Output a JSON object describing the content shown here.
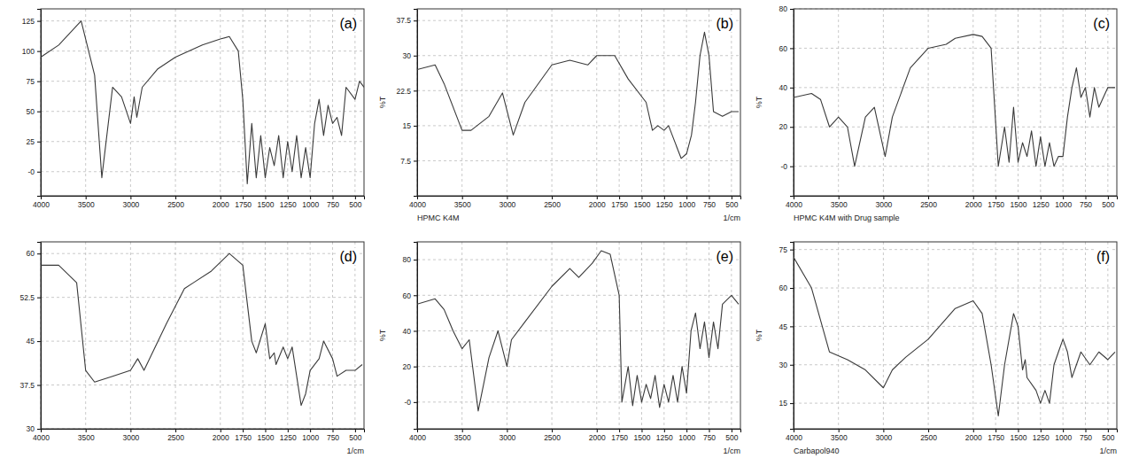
{
  "chart_data": [
    {
      "type": "line",
      "title": "(a)",
      "color": "#3a3a3a",
      "grid": true,
      "xlim": [
        4000,
        400
      ],
      "xticks": [
        4000,
        3500,
        3000,
        2500,
        2000,
        1750,
        1500,
        1250,
        1000,
        750,
        500
      ],
      "ylim": [
        -20,
        135
      ],
      "yticks": [
        {
          "value": 0,
          "label": "-0"
        },
        25,
        50,
        75,
        100,
        125
      ],
      "x": [
        4000,
        3800,
        3550,
        3400,
        3320,
        3200,
        3100,
        3000,
        2960,
        2930,
        2870,
        2700,
        2500,
        2200,
        2000,
        1900,
        1800,
        1750,
        1700,
        1650,
        1600,
        1550,
        1500,
        1450,
        1400,
        1350,
        1300,
        1250,
        1200,
        1150,
        1100,
        1050,
        1000,
        950,
        900,
        850,
        800,
        750,
        700,
        650,
        600,
        500,
        450,
        400
      ],
      "values": [
        95,
        105,
        125,
        80,
        -5,
        70,
        62,
        40,
        62,
        45,
        70,
        85,
        95,
        105,
        110,
        112,
        100,
        60,
        -10,
        40,
        -5,
        30,
        -5,
        20,
        5,
        30,
        -5,
        25,
        0,
        30,
        -5,
        20,
        -5,
        40,
        60,
        30,
        55,
        40,
        45,
        30,
        70,
        60,
        75,
        70
      ]
    },
    {
      "type": "line",
      "title": "(b)",
      "caption": "HPMC K4M",
      "x_label": "1/cm",
      "y_label": "%T",
      "color": "#3a3a3a",
      "grid": true,
      "xlim": [
        4000,
        400
      ],
      "xticks": [
        4000,
        3500,
        3000,
        2500,
        2000,
        1750,
        1500,
        1250,
        1000,
        750,
        500
      ],
      "ylim": [
        0,
        40
      ],
      "yticks": [
        7.5,
        15,
        22.5,
        30,
        37.5
      ],
      "x": [
        4000,
        3800,
        3700,
        3500,
        3400,
        3200,
        3050,
        2930,
        2800,
        2500,
        2300,
        2100,
        2000,
        1800,
        1650,
        1450,
        1380,
        1320,
        1250,
        1200,
        1100,
        1060,
        1000,
        945,
        900,
        850,
        800,
        750,
        700,
        600,
        500,
        420
      ],
      "values": [
        27,
        28,
        24,
        14,
        14,
        17,
        22,
        13,
        20,
        28,
        29,
        28,
        30,
        30,
        25,
        20,
        14,
        15,
        14,
        15,
        10,
        8,
        9,
        13,
        20,
        30,
        35,
        30,
        18,
        17,
        18,
        18
      ]
    },
    {
      "type": "line",
      "title": "(c)",
      "caption": "HPMC K4M with Drug sample",
      "y_label": "%T",
      "color": "#3a3a3a",
      "grid": true,
      "xlim": [
        4000,
        400
      ],
      "xticks": [
        4000,
        3500,
        3000,
        2500,
        2000,
        1750,
        1500,
        1250,
        1000,
        750,
        500
      ],
      "ylim": [
        -15,
        80
      ],
      "yticks": [
        {
          "value": 0,
          "label": "-0"
        },
        20,
        40,
        60,
        80
      ],
      "x": [
        4000,
        3800,
        3700,
        3600,
        3500,
        3400,
        3320,
        3200,
        3100,
        2980,
        2900,
        2700,
        2500,
        2300,
        2200,
        2000,
        1900,
        1800,
        1720,
        1650,
        1600,
        1550,
        1500,
        1450,
        1400,
        1350,
        1300,
        1250,
        1200,
        1150,
        1100,
        1050,
        1000,
        950,
        900,
        850,
        800,
        750,
        700,
        650,
        600,
        500,
        420
      ],
      "values": [
        35,
        37,
        34,
        20,
        25,
        20,
        0,
        25,
        30,
        5,
        25,
        50,
        60,
        62,
        65,
        67,
        66,
        60,
        0,
        20,
        2,
        30,
        2,
        12,
        5,
        18,
        0,
        15,
        0,
        12,
        0,
        5,
        5,
        25,
        40,
        50,
        35,
        40,
        25,
        40,
        30,
        40,
        40
      ]
    },
    {
      "type": "line",
      "title": "(d)",
      "x_label": "1/cm",
      "color": "#3a3a3a",
      "grid": true,
      "xlim": [
        4000,
        400
      ],
      "xticks": [
        4000,
        3500,
        3000,
        2500,
        2000,
        1750,
        1500,
        1250,
        1000,
        750,
        500
      ],
      "ylim": [
        30,
        62
      ],
      "yticks": [
        30,
        37.5,
        45,
        52.5,
        60
      ],
      "x": [
        4000,
        3800,
        3600,
        3500,
        3400,
        3200,
        3000,
        2920,
        2850,
        2600,
        2400,
        2300,
        2100,
        1900,
        1750,
        1650,
        1600,
        1500,
        1450,
        1400,
        1380,
        1300,
        1250,
        1200,
        1100,
        1050,
        1000,
        900,
        850,
        750,
        700,
        600,
        500,
        420
      ],
      "values": [
        58,
        58,
        55,
        40,
        38,
        39,
        40,
        42,
        40,
        48,
        54,
        55,
        57,
        60,
        58,
        45,
        43,
        48,
        42,
        43,
        41,
        44,
        42,
        44,
        34,
        36,
        40,
        42,
        45,
        42,
        39,
        40,
        40,
        41
      ]
    },
    {
      "type": "line",
      "title": "(e)",
      "x_label": "1/cm",
      "y_label": "%T",
      "color": "#3a3a3a",
      "grid": true,
      "xlim": [
        4000,
        400
      ],
      "xticks": [
        4000,
        3500,
        3000,
        2500,
        2000,
        1750,
        1500,
        1250,
        1000,
        750,
        500
      ],
      "ylim": [
        -15,
        90
      ],
      "yticks": [
        {
          "value": 0,
          "label": "-0"
        },
        20,
        40,
        60,
        80
      ],
      "x": [
        4000,
        3800,
        3700,
        3600,
        3500,
        3420,
        3320,
        3200,
        3100,
        3000,
        2950,
        2800,
        2500,
        2300,
        2200,
        2050,
        1950,
        1850,
        1750,
        1720,
        1650,
        1600,
        1550,
        1500,
        1450,
        1400,
        1350,
        1300,
        1250,
        1200,
        1150,
        1100,
        1050,
        1000,
        950,
        900,
        850,
        800,
        750,
        700,
        650,
        600,
        500,
        420
      ],
      "values": [
        55,
        58,
        52,
        40,
        30,
        35,
        -5,
        25,
        40,
        20,
        35,
        45,
        65,
        75,
        70,
        78,
        85,
        83,
        60,
        0,
        20,
        -2,
        15,
        0,
        10,
        2,
        15,
        -3,
        10,
        0,
        15,
        0,
        20,
        5,
        40,
        50,
        30,
        45,
        25,
        45,
        30,
        55,
        60,
        55
      ]
    },
    {
      "type": "line",
      "title": "(f)",
      "caption": "Carbapol940",
      "x_label": "1/cm",
      "y_label": "%T",
      "color": "#3a3a3a",
      "grid": true,
      "xlim": [
        4000,
        400
      ],
      "xticks": [
        4000,
        3500,
        3000,
        2500,
        2000,
        1750,
        1500,
        1250,
        1000,
        750,
        500
      ],
      "ylim": [
        5,
        78
      ],
      "yticks": [
        15,
        30,
        45,
        60,
        75
      ],
      "x": [
        4000,
        3800,
        3600,
        3400,
        3200,
        3000,
        2900,
        2750,
        2500,
        2200,
        2000,
        1900,
        1800,
        1720,
        1650,
        1550,
        1500,
        1450,
        1420,
        1400,
        1300,
        1250,
        1200,
        1150,
        1100,
        1050,
        1000,
        950,
        900,
        850,
        800,
        700,
        600,
        500,
        420
      ],
      "values": [
        72,
        60,
        35,
        32,
        28,
        21,
        28,
        33,
        40,
        52,
        55,
        50,
        30,
        10,
        30,
        50,
        45,
        28,
        32,
        25,
        20,
        15,
        20,
        15,
        30,
        35,
        40,
        35,
        25,
        30,
        35,
        30,
        35,
        32,
        35
      ]
    }
  ]
}
